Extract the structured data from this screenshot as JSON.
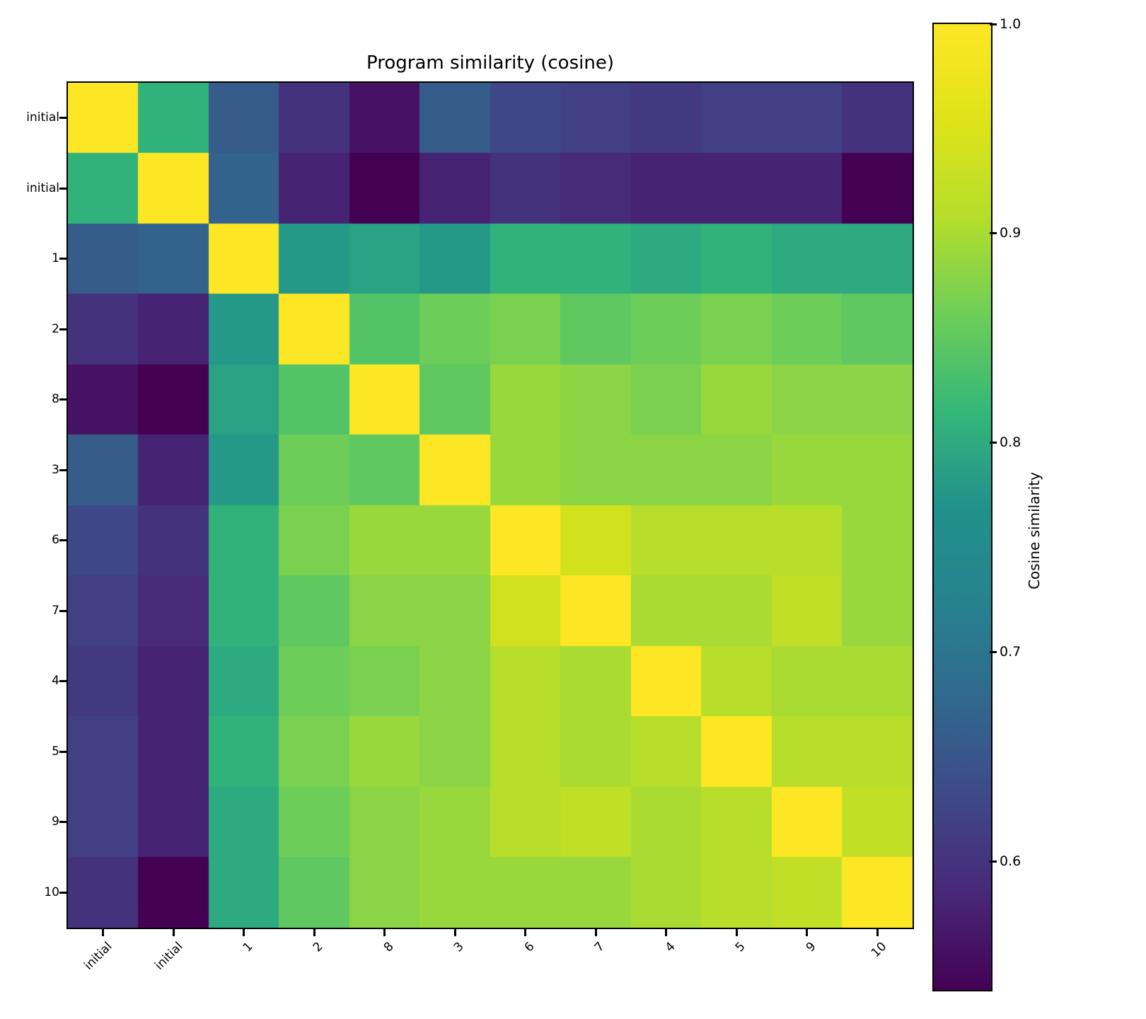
{
  "title": "Program similarity (cosine)",
  "chart_data": {
    "type": "heatmap",
    "title": "Program similarity (cosine)",
    "labels": [
      "initial",
      "initial",
      "1",
      "2",
      "8",
      "3",
      "6",
      "7",
      "4",
      "5",
      "9",
      "10"
    ],
    "matrix": [
      [
        1.0,
        0.81,
        0.66,
        0.6,
        0.56,
        0.66,
        0.63,
        0.62,
        0.61,
        0.62,
        0.62,
        0.6
      ],
      [
        0.81,
        1.0,
        0.67,
        0.58,
        0.54,
        0.58,
        0.6,
        0.59,
        0.58,
        0.58,
        0.58,
        0.54
      ],
      [
        0.66,
        0.67,
        1.0,
        0.78,
        0.79,
        0.78,
        0.81,
        0.81,
        0.8,
        0.81,
        0.8,
        0.8
      ],
      [
        0.6,
        0.58,
        0.78,
        1.0,
        0.84,
        0.86,
        0.87,
        0.85,
        0.86,
        0.87,
        0.86,
        0.85
      ],
      [
        0.56,
        0.54,
        0.79,
        0.84,
        1.0,
        0.85,
        0.89,
        0.88,
        0.87,
        0.89,
        0.88,
        0.88
      ],
      [
        0.66,
        0.58,
        0.78,
        0.86,
        0.85,
        1.0,
        0.89,
        0.88,
        0.88,
        0.88,
        0.89,
        0.89
      ],
      [
        0.63,
        0.6,
        0.81,
        0.87,
        0.89,
        0.89,
        1.0,
        0.94,
        0.91,
        0.91,
        0.91,
        0.89
      ],
      [
        0.62,
        0.59,
        0.81,
        0.85,
        0.88,
        0.88,
        0.94,
        1.0,
        0.9,
        0.9,
        0.92,
        0.89
      ],
      [
        0.61,
        0.58,
        0.8,
        0.86,
        0.87,
        0.88,
        0.91,
        0.9,
        1.0,
        0.91,
        0.9,
        0.9
      ],
      [
        0.62,
        0.58,
        0.81,
        0.87,
        0.89,
        0.88,
        0.91,
        0.9,
        0.91,
        1.0,
        0.91,
        0.91
      ],
      [
        0.62,
        0.58,
        0.8,
        0.86,
        0.88,
        0.89,
        0.91,
        0.92,
        0.9,
        0.91,
        1.0,
        0.92
      ],
      [
        0.6,
        0.54,
        0.8,
        0.85,
        0.88,
        0.89,
        0.89,
        0.89,
        0.9,
        0.91,
        0.92,
        1.0
      ]
    ],
    "colorbar": {
      "label": "Cosine similarity",
      "tick_labels": [
        "1.0",
        "0.9",
        "0.8",
        "0.7",
        "0.6"
      ],
      "tick_values": [
        1.0,
        0.9,
        0.8,
        0.7,
        0.6
      ],
      "vmin": 0.54,
      "vmax": 1.0
    },
    "colormap": {
      "name": "viridis",
      "stops": [
        "#440154",
        "#482878",
        "#3e4989",
        "#31688e",
        "#26828e",
        "#21918c",
        "#35b779",
        "#6ece58",
        "#b5de2b",
        "#dfe318",
        "#fde725"
      ]
    },
    "layout": {
      "grid": false,
      "x_tick_rotation_deg": 45,
      "colorbar_position": "right"
    }
  }
}
